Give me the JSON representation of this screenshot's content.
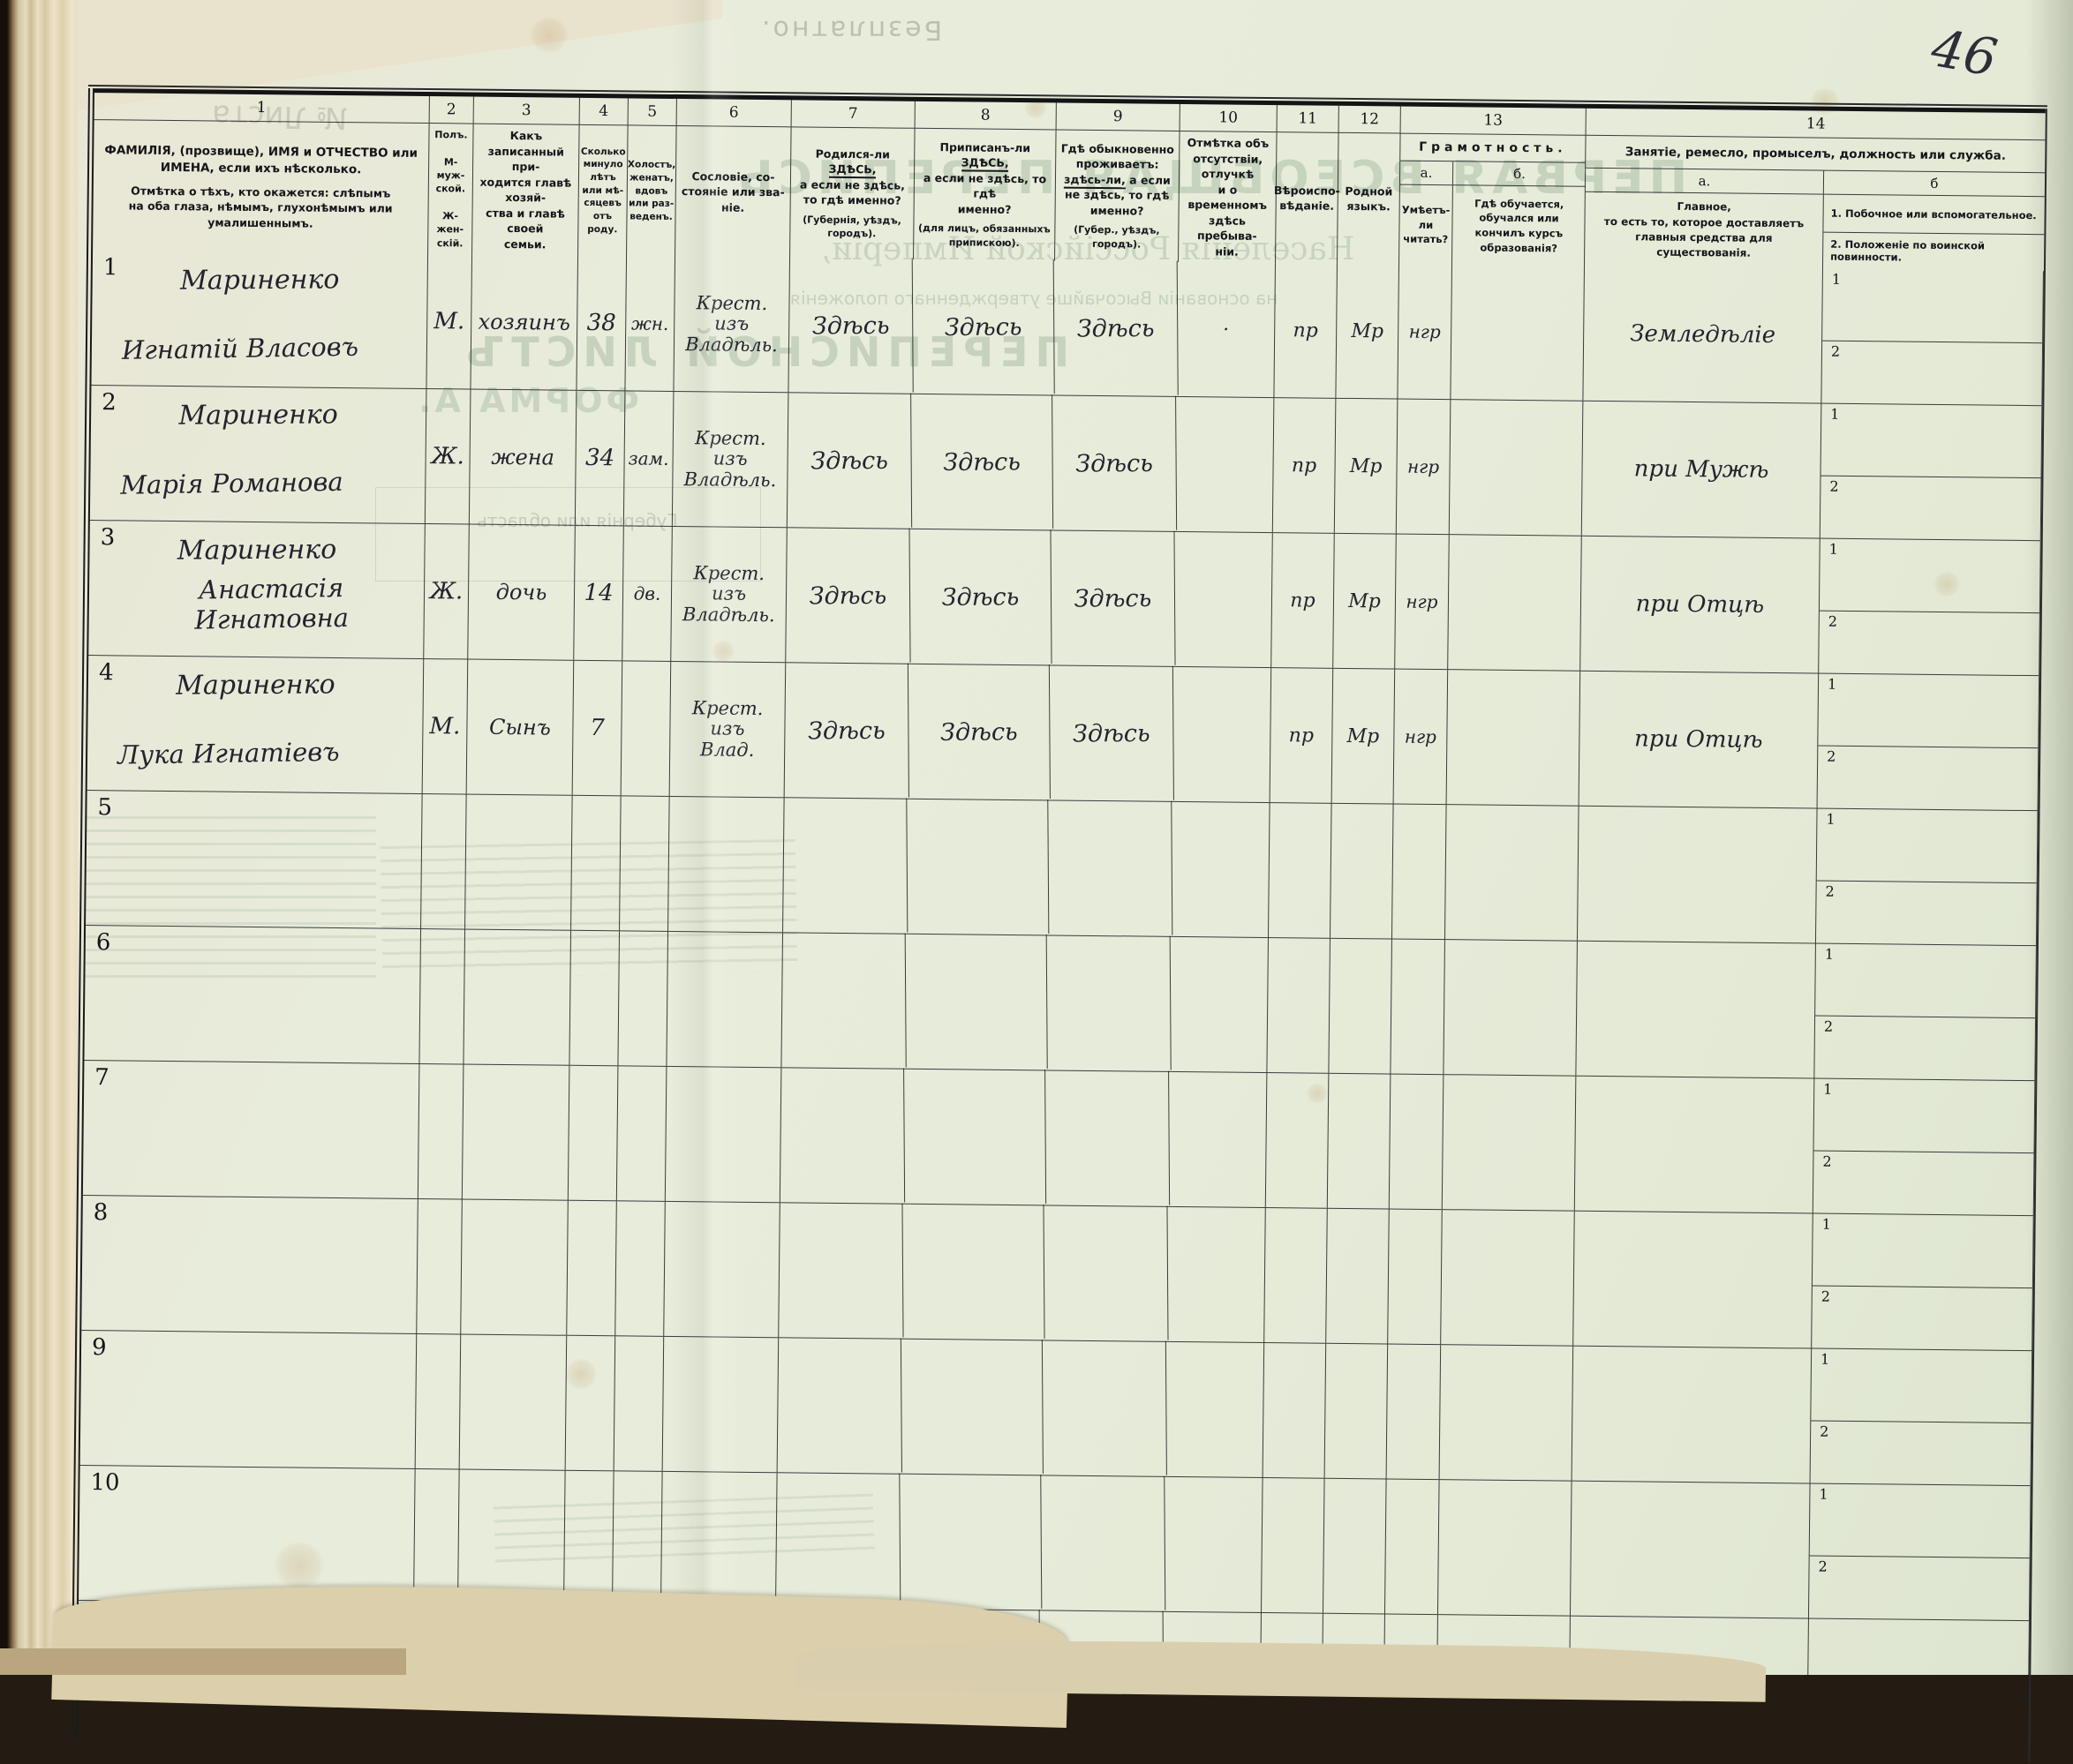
{
  "page": {
    "number": "46"
  },
  "bleedthrough": {
    "stamp_top": "Безплатно.",
    "sheet_no": "№ Листа",
    "title1": "ПЕРВАЯ ВСЕОБЩАЯ ПЕРЕПИСЬ",
    "title2": "Населенія Россійской Имперіи,",
    "title3": "на основаніи Высочайше утвержденнаго положенія",
    "title4": "ПЕРЕПИСНОЙ ЛИСТЪ",
    "title5": "ФОРМА А.",
    "province": "Губернія или область"
  },
  "header": {
    "c1": {
      "num": "1",
      "text": "ФАМИЛІЯ, (прозвище), ИМЯ и ОТЧЕСТВО или\nИМЕНА, если ихъ нѣсколько.",
      "text2": "Отмѣтка о тѣхъ, кто окажется: слѣпымъ\nна оба глаза, нѣмымъ, глухонѣмымъ или\nумалишеннымъ."
    },
    "c2": {
      "num": "2",
      "text": "Полъ.\n\nМ-муж-\nской.\n\nЖ-жен-\nскій."
    },
    "c3": {
      "num": "3",
      "text": "Какъ записанный при-\nходится главѣ хозяй-\nства и главѣ своей\nсемьи."
    },
    "c4": {
      "num": "4",
      "text": "Сколько\nминуло\nлѣтъ\nили мѣ-\nсяцевъ\nотъ роду."
    },
    "c5": {
      "num": "5",
      "text": "Холостъ,\nженатъ,\nвдовъ\nили раз-\nведенъ."
    },
    "c6": {
      "num": "6",
      "text": "Сословіе, со-\nстояніе или зва-\nніе."
    },
    "c7": {
      "num": "7",
      "lead": "Родился-ли",
      "emph": "ЗДѢСЬ,",
      "rest": "а если не здѣсь,\nто гдѣ именно?",
      "note": "(Губернія, уѣздъ, городъ)."
    },
    "c8": {
      "num": "8",
      "lead": "Приписанъ-ли",
      "emph": "ЗДѢСЬ,",
      "rest": "а если не здѣсь, то гдѣ\nименно?",
      "note": "(для лицъ, обязанныхъ\nприпискою)."
    },
    "c9": {
      "num": "9",
      "lead": "Гдѣ обыкновенно\nпроживаетъ:",
      "emph": "здѣсь-ли,",
      "rest": "а если\nне здѣсь, то гдѣ\nименно?",
      "note": "(Губер., уѣздъ, городъ)."
    },
    "c10": {
      "num": "10",
      "text": "Отмѣтка объ\nотсутствіи, отлучкѣ\nи о временномъ\nздѣсь пребыва-\nніи."
    },
    "c11": {
      "num": "11",
      "text": "Вѣроиспо-\nвѣданіе."
    },
    "c12": {
      "num": "12",
      "text": "Родной\nязыкъ."
    },
    "c13": {
      "num": "13",
      "title": "Грамотность.",
      "a_label": "а.",
      "b_label": "б.",
      "a_text": "Умѣетъ-\nли\nчитать?",
      "b_text": "Гдѣ обучается,\nобучался или\nкончилъ курсъ\nобразованія?"
    },
    "c14": {
      "num": "14",
      "title": "Занятіе, ремесло, промыселъ, должность или служба.",
      "a_label": "а.",
      "b_label": "б",
      "a_text": "Главное,\nто есть то, которое доставляетъ\nглавныя средства для существованія.",
      "b1": "1.  Побочное или вспомогательное.",
      "b2": "2.  Положеніе по воинской повинности."
    }
  },
  "rows": [
    {
      "n": "1",
      "name1": "Мариненко",
      "name2": "Игнатій Власовъ",
      "sex": "М.",
      "rel": "хозяинъ",
      "age": "38",
      "mar": "жн.",
      "est": "Крест.\nизъ\nВладѣль.",
      "born": "Здѣсь",
      "reg": "Здѣсь",
      "live": "Здѣсь",
      "abs": "·",
      "faith": "пр",
      "lang": "Мр",
      "lit": "нгр",
      "edu": "",
      "occ": "Земледѣліе",
      "sub1": "1",
      "sub2": "2"
    },
    {
      "n": "2",
      "name1": "Мариненко",
      "name2": "Марія Романова",
      "sex": "Ж.",
      "rel": "жена",
      "age": "34",
      "mar": "зам.",
      "est": "Крест.\nизъ\nВладѣль.",
      "born": "Здѣсь",
      "reg": "Здѣсь",
      "live": "Здѣсь",
      "abs": "",
      "faith": "пр",
      "lang": "Мр",
      "lit": "нгр",
      "edu": "",
      "occ": "при Мужѣ",
      "sub1": "1",
      "sub2": "2"
    },
    {
      "n": "3",
      "name1": "Мариненко",
      "name2": "Анастасія Игнатовна",
      "sex": "Ж.",
      "rel": "дочь",
      "age": "14",
      "mar": "дв.",
      "est": "Крест.\nизъ\nВладѣль.",
      "born": "Здѣсь",
      "reg": "Здѣсь",
      "live": "Здѣсь",
      "abs": "",
      "faith": "пр",
      "lang": "Мр",
      "lit": "нгр",
      "edu": "",
      "occ": "при Отцѣ",
      "sub1": "1",
      "sub2": "2"
    },
    {
      "n": "4",
      "name1": "Мариненко",
      "name2": "Лука Игнатіевъ",
      "sex": "М.",
      "rel": "Сынъ",
      "age": "7",
      "mar": "",
      "est": "Крест.\nизъ\nВлад.",
      "born": "Здѣсь",
      "reg": "Здѣсь",
      "live": "Здѣсь",
      "abs": "",
      "faith": "пр",
      "lang": "Мр",
      "lit": "нгр",
      "edu": "",
      "occ": "при Отцѣ",
      "sub1": "1",
      "sub2": "2"
    },
    {
      "n": "5",
      "name1": "",
      "name2": "",
      "sex": "",
      "rel": "",
      "age": "",
      "mar": "",
      "est": "",
      "born": "",
      "reg": "",
      "live": "",
      "abs": "",
      "faith": "",
      "lang": "",
      "lit": "",
      "edu": "",
      "occ": "",
      "sub1": "1",
      "sub2": "2"
    },
    {
      "n": "6",
      "name1": "",
      "name2": "",
      "sex": "",
      "rel": "",
      "age": "",
      "mar": "",
      "est": "",
      "born": "",
      "reg": "",
      "live": "",
      "abs": "",
      "faith": "",
      "lang": "",
      "lit": "",
      "edu": "",
      "occ": "",
      "sub1": "1",
      "sub2": "2"
    },
    {
      "n": "7",
      "name1": "",
      "name2": "",
      "sex": "",
      "rel": "",
      "age": "",
      "mar": "",
      "est": "",
      "born": "",
      "reg": "",
      "live": "",
      "abs": "",
      "faith": "",
      "lang": "",
      "lit": "",
      "edu": "",
      "occ": "",
      "sub1": "1",
      "sub2": "2"
    },
    {
      "n": "8",
      "name1": "",
      "name2": "",
      "sex": "",
      "rel": "",
      "age": "",
      "mar": "",
      "est": "",
      "born": "",
      "reg": "",
      "live": "",
      "abs": "",
      "faith": "",
      "lang": "",
      "lit": "",
      "edu": "",
      "occ": "",
      "sub1": "1",
      "sub2": "2"
    },
    {
      "n": "9",
      "name1": "",
      "name2": "",
      "sex": "",
      "rel": "",
      "age": "",
      "mar": "",
      "est": "",
      "born": "",
      "reg": "",
      "live": "",
      "abs": "",
      "faith": "",
      "lang": "",
      "lit": "",
      "edu": "",
      "occ": "",
      "sub1": "1",
      "sub2": "2"
    },
    {
      "n": "10",
      "name1": "",
      "name2": "",
      "sex": "",
      "rel": "",
      "age": "",
      "mar": "",
      "est": "",
      "born": "",
      "reg": "",
      "live": "",
      "abs": "",
      "faith": "",
      "lang": "",
      "lit": "",
      "edu": "",
      "occ": "",
      "sub1": "1",
      "sub2": "2"
    },
    {
      "n": "",
      "partial": true,
      "name1": "",
      "name2": "",
      "sex": "",
      "rel": "",
      "age": "",
      "mar": "",
      "est": "",
      "born": "",
      "reg": "",
      "live": "",
      "abs": "",
      "faith": "",
      "lang": "",
      "lit": "",
      "edu": "",
      "occ": "",
      "sub1": "",
      "sub2": ""
    }
  ]
}
